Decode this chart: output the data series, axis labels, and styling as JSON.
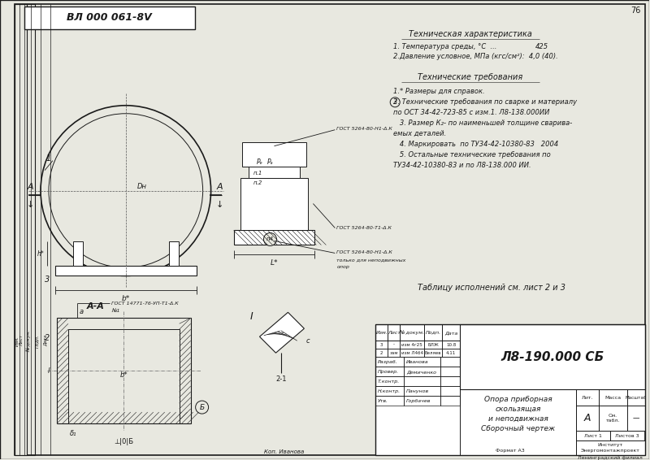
{
  "page_number": "76",
  "drawing_num": "ВЛ 000 061-8V",
  "bg_color": "#e8e8e0",
  "line_color": "#1a1a1a",
  "tech_char_title": "Техническая характеристика",
  "tech_char": [
    "1. Температура среды, °С  ...",
    "425",
    "2.Давление условное, МПа (кгс/см²):  4,0 (40)."
  ],
  "tech_req_title": "Технические требования",
  "tech_req": [
    "1.* Размеры для справок.",
    "2. Технические требования по сварке и материалу",
    "по ОСТ 34-42-723-85 с изм.1. Л8-138.000ИИ",
    "   3. Размер К₂- по наименьшей толщине сварива-",
    "емых деталей.",
    "   4. Маркировать  по ТУ34-42-10380-83   2004",
    "   5. Остальные технические требования по",
    "ТУ34-42-10380-83 и по Л8-138.000 ИИ."
  ],
  "table_note": "Таблицу исполнений см. лист 2 и 3",
  "tb_title": "Л8-190.000 СБ",
  "tb_desc1": "Опора приборная",
  "tb_desc2": "скользящая",
  "tb_desc3": "и неподвижная",
  "tb_desc4": "Сборочный чертеж",
  "tb_liter": "А",
  "tb_massa": "См.\nтабл.",
  "tb_list": "Лист 1",
  "tb_listov": "Листов 3",
  "tb_inst1": "Институт",
  "tb_inst2": "Энергомонтажпроект",
  "tb_inst3": "Ленинградский филиал",
  "format": "Формат А3",
  "kop": "Коп. Иванова",
  "gost1": "ГОСТ 5264-80-Н1-Δ.К",
  "gost2": "ГОСТ 5264-80-Т1-Δ.К",
  "gost3": "ГОСТ 5264-80-Н1-Δ.К",
  "gost3b": "только для неподвижных",
  "gost3c": "опор",
  "gost4": "ГОСТ 14771-76-УП-Т1-Δ.К",
  "gost4b": "№1",
  "sec_label": "А-А",
  "view_label": "I",
  "label_n1": "п.1",
  "label_n2": "п.2",
  "label_n4": "п4",
  "label_2_1": "2-1",
  "authors": [
    [
      "Разраб.",
      "Иванова",
      ""
    ],
    [
      "Провер.",
      "Демиченко",
      ""
    ],
    [
      "Т.контр.",
      "",
      ""
    ],
    [
      "Н.контр.",
      "Панунов",
      ""
    ],
    [
      "Утв.",
      "Горбачев",
      ""
    ]
  ],
  "change_rows": [
    [
      "3",
      "-",
      "изм 4г25",
      "БЛЖ",
      "10.8"
    ],
    [
      "2",
      "зам",
      "изм Л4б4",
      "Беляев",
      "4.11"
    ]
  ]
}
